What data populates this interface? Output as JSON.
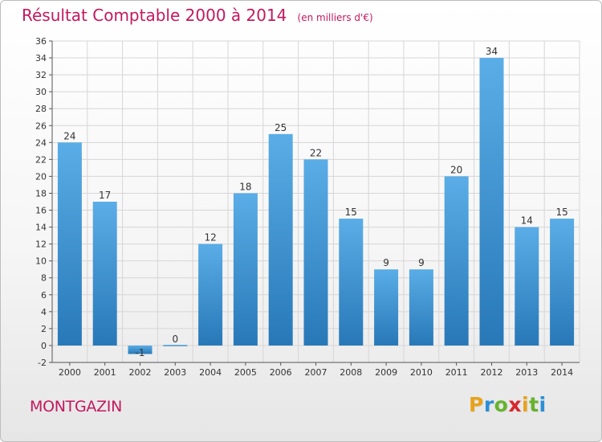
{
  "header": {
    "title": "Résultat Comptable 2000 à 2014",
    "subtitle": "(en milliers d'€)"
  },
  "footer": {
    "place": "MONTGAZIN",
    "logo_letters": [
      "P",
      "r",
      "o",
      "x",
      "i",
      "t",
      "i"
    ],
    "logo_colors": [
      "#e8a21a",
      "#2a8fd6",
      "#66b32e",
      "#d8262c",
      "#e8a21a",
      "#66b32e",
      "#2a8fd6"
    ]
  },
  "colors": {
    "bar_top": "#5aade6",
    "bar_bottom": "#2878b8",
    "title": "#c3185f",
    "grid": "#d6d6d6",
    "text": "#333333"
  },
  "chart_data": {
    "type": "bar",
    "title": "Résultat Comptable 2000 à 2014",
    "subtitle": "(en milliers d'€)",
    "categories": [
      "2000",
      "2001",
      "2002",
      "2003",
      "2004",
      "2005",
      "2006",
      "2007",
      "2008",
      "2009",
      "2010",
      "2011",
      "2012",
      "2013",
      "2014"
    ],
    "values": [
      24,
      17,
      -1,
      0,
      12,
      18,
      25,
      22,
      15,
      9,
      9,
      20,
      34,
      14,
      15
    ],
    "data_labels": [
      "24",
      "17",
      "-1",
      "0",
      "12",
      "18",
      "25",
      "22",
      "15",
      "9",
      "9",
      "20",
      "34",
      "14",
      "15"
    ],
    "ylim": [
      -2,
      36
    ],
    "yticks": [
      -2,
      0,
      2,
      4,
      6,
      8,
      10,
      12,
      14,
      16,
      18,
      20,
      22,
      24,
      26,
      28,
      30,
      32,
      34,
      36
    ],
    "grid": true,
    "legend": "none"
  }
}
